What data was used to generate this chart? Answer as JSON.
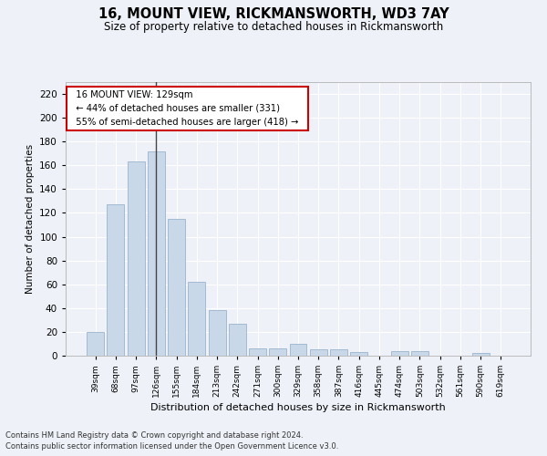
{
  "title": "16, MOUNT VIEW, RICKMANSWORTH, WD3 7AY",
  "subtitle": "Size of property relative to detached houses in Rickmansworth",
  "xlabel": "Distribution of detached houses by size in Rickmansworth",
  "ylabel": "Number of detached properties",
  "footer_line1": "Contains HM Land Registry data © Crown copyright and database right 2024.",
  "footer_line2": "Contains public sector information licensed under the Open Government Licence v3.0.",
  "annotation_line1": "16 MOUNT VIEW: 129sqm",
  "annotation_line2": "← 44% of detached houses are smaller (331)",
  "annotation_line3": "55% of semi-detached houses are larger (418) →",
  "bar_color": "#c8d8e8",
  "bar_edge_color": "#9ab4cc",
  "marker_line_color": "#444444",
  "annotation_box_color": "#ffffff",
  "annotation_box_edge": "#cc0000",
  "categories": [
    "39sqm",
    "68sqm",
    "97sqm",
    "126sqm",
    "155sqm",
    "184sqm",
    "213sqm",
    "242sqm",
    "271sqm",
    "300sqm",
    "329sqm",
    "358sqm",
    "387sqm",
    "416sqm",
    "445sqm",
    "474sqm",
    "503sqm",
    "532sqm",
    "561sqm",
    "590sqm",
    "619sqm"
  ],
  "values": [
    20,
    127,
    163,
    172,
    115,
    62,
    38,
    27,
    6,
    6,
    10,
    5,
    5,
    3,
    0,
    4,
    4,
    0,
    0,
    2,
    0
  ],
  "ylim": [
    0,
    230
  ],
  "yticks": [
    0,
    20,
    40,
    60,
    80,
    100,
    120,
    140,
    160,
    180,
    200,
    220
  ],
  "bg_color": "#eef2f8",
  "grid_color": "#ffffff",
  "marker_bin_index": 3
}
